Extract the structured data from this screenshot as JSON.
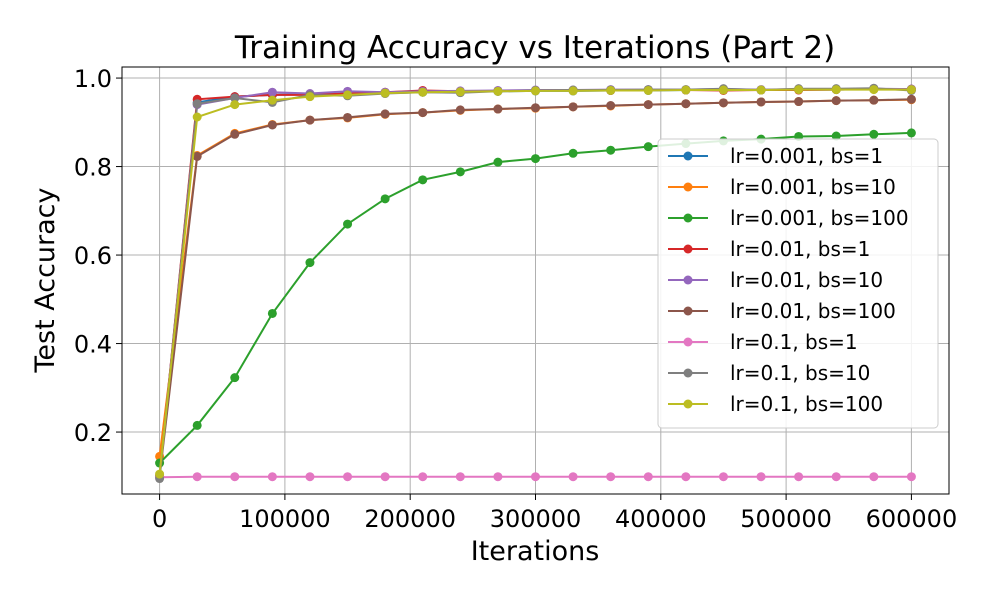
{
  "chart_data": {
    "type": "line",
    "title": "Training Accuracy vs Iterations (Part 2)",
    "xlabel": "Iterations",
    "ylabel": "Test Accuracy",
    "xlim": [
      -30000,
      630000
    ],
    "ylim": [
      0.06,
      1.025
    ],
    "xticks": [
      0,
      100000,
      200000,
      300000,
      400000,
      500000,
      600000
    ],
    "xtick_labels": [
      "0",
      "100000",
      "200000",
      "300000",
      "400000",
      "500000",
      "600000"
    ],
    "yticks": [
      0.2,
      0.4,
      0.6,
      0.8,
      1.0
    ],
    "ytick_labels": [
      "0.2",
      "0.4",
      "0.6",
      "0.8",
      "1.0"
    ],
    "grid": true,
    "legend_position": "center-right",
    "x": [
      0,
      30000,
      60000,
      90000,
      120000,
      150000,
      180000,
      210000,
      240000,
      270000,
      300000,
      330000,
      360000,
      390000,
      420000,
      450000,
      480000,
      510000,
      540000,
      570000,
      600000
    ],
    "series": [
      {
        "name": "lr=0.001, bs=1",
        "color": "#1f77b4",
        "values": [
          0.1,
          0.945,
          0.958,
          0.962,
          0.963,
          0.965,
          0.966,
          0.968,
          0.969,
          0.97,
          0.971,
          0.971,
          0.972,
          0.972,
          0.973,
          0.973,
          0.973,
          0.974,
          0.974,
          0.975,
          0.975
        ]
      },
      {
        "name": "lr=0.001, bs=10",
        "color": "#ff7f0e",
        "values": [
          0.145,
          0.825,
          0.875,
          0.895,
          0.905,
          0.91,
          0.918,
          0.922,
          0.927,
          0.93,
          0.932,
          0.935,
          0.937,
          0.94,
          0.942,
          0.944,
          0.946,
          0.947,
          0.949,
          0.95,
          0.951
        ]
      },
      {
        "name": "lr=0.001, bs=100",
        "color": "#2ca02c",
        "values": [
          0.13,
          0.215,
          0.323,
          0.468,
          0.583,
          0.67,
          0.727,
          0.77,
          0.788,
          0.81,
          0.818,
          0.83,
          0.837,
          0.845,
          0.852,
          0.858,
          0.862,
          0.868,
          0.869,
          0.873,
          0.876
        ]
      },
      {
        "name": "lr=0.01, bs=1",
        "color": "#d62728",
        "values": [
          0.1,
          0.952,
          0.958,
          0.962,
          0.962,
          0.965,
          0.968,
          0.972,
          0.97,
          0.971,
          0.972,
          0.972,
          0.972,
          0.973,
          0.973,
          0.972,
          0.973,
          0.973,
          0.974,
          0.975,
          0.975
        ]
      },
      {
        "name": "lr=0.01, bs=10",
        "color": "#9467bd",
        "values": [
          0.1,
          0.94,
          0.955,
          0.968,
          0.965,
          0.97,
          0.968,
          0.97,
          0.971,
          0.972,
          0.973,
          0.973,
          0.974,
          0.974,
          0.974,
          0.975,
          0.974,
          0.975,
          0.975,
          0.976,
          0.975
        ]
      },
      {
        "name": "lr=0.01, bs=100",
        "color": "#8c564b",
        "values": [
          0.1,
          0.823,
          0.873,
          0.894,
          0.905,
          0.911,
          0.919,
          0.922,
          0.928,
          0.93,
          0.933,
          0.935,
          0.938,
          0.94,
          0.942,
          0.944,
          0.946,
          0.947,
          0.949,
          0.95,
          0.952
        ]
      },
      {
        "name": "lr=0.1, bs=1",
        "color": "#e377c2",
        "values": [
          0.098,
          0.099,
          0.099,
          0.099,
          0.099,
          0.099,
          0.099,
          0.099,
          0.099,
          0.099,
          0.099,
          0.099,
          0.099,
          0.099,
          0.099,
          0.099,
          0.099,
          0.099,
          0.099,
          0.099,
          0.099
        ]
      },
      {
        "name": "lr=0.1, bs=10",
        "color": "#7f7f7f",
        "values": [
          0.095,
          0.942,
          0.955,
          0.945,
          0.962,
          0.96,
          0.965,
          0.968,
          0.967,
          0.97,
          0.972,
          0.973,
          0.973,
          0.974,
          0.974,
          0.976,
          0.973,
          0.976,
          0.976,
          0.977,
          0.972
        ]
      },
      {
        "name": "lr=0.1, bs=100",
        "color": "#bcbd22",
        "values": [
          0.105,
          0.912,
          0.94,
          0.95,
          0.958,
          0.962,
          0.966,
          0.968,
          0.969,
          0.97,
          0.971,
          0.971,
          0.972,
          0.972,
          0.973,
          0.973,
          0.973,
          0.974,
          0.974,
          0.974,
          0.974
        ]
      }
    ]
  }
}
